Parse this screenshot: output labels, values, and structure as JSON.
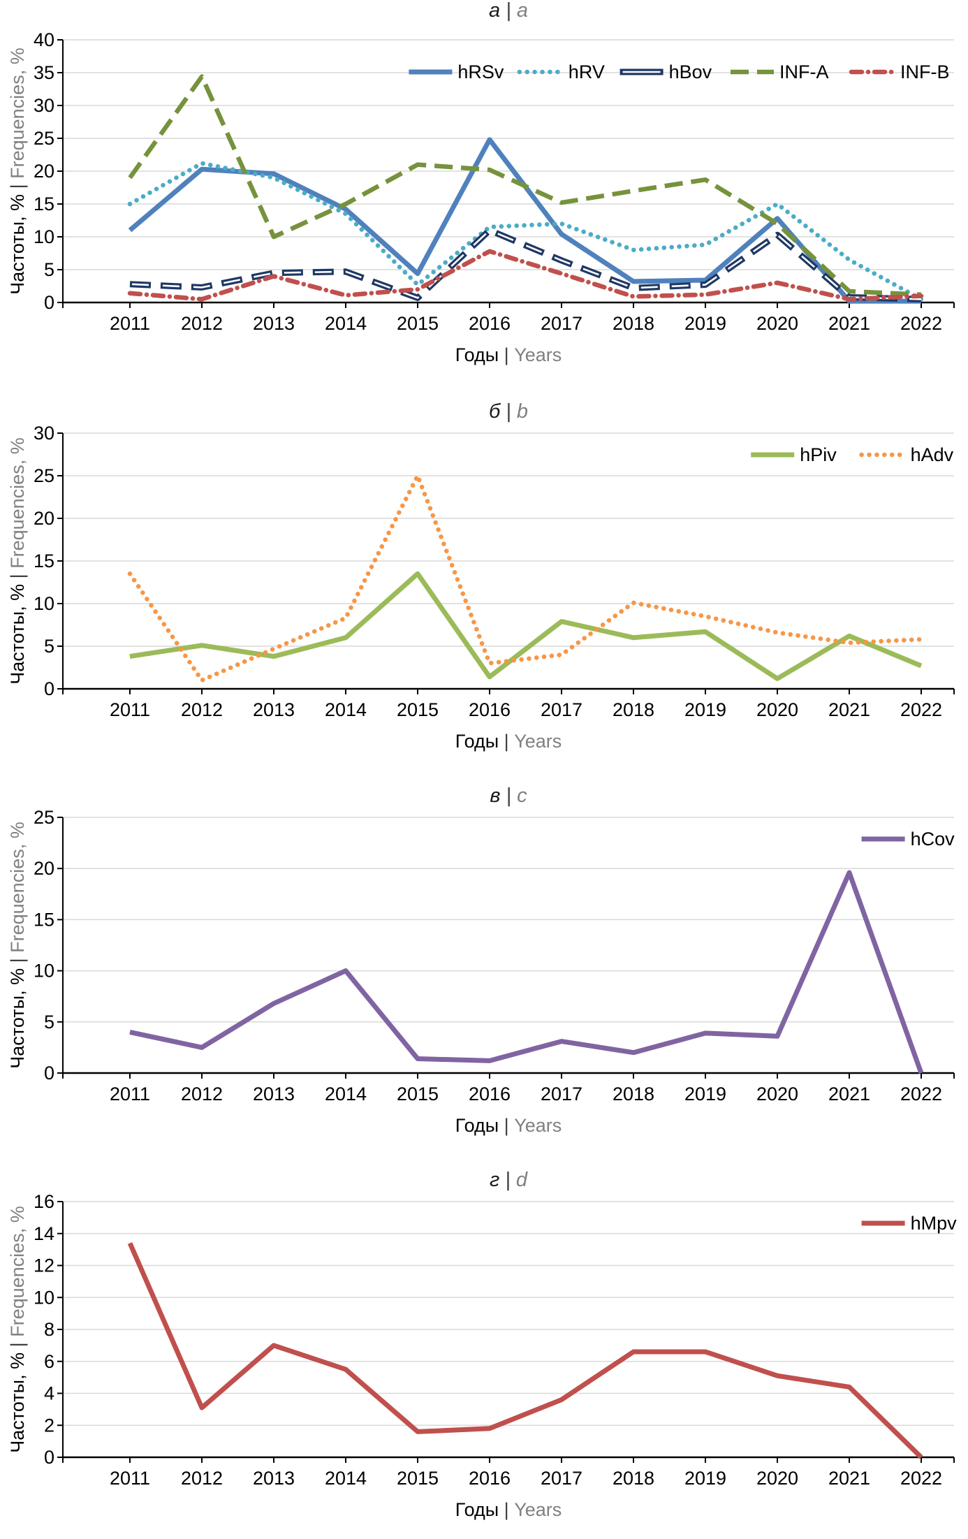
{
  "figure_label": "Frequencies of respiratory viruses by year, four panels",
  "palette": {
    "hRSv": "#4F81BD",
    "hRV": "#4BACC6",
    "hBov": "#1F3864",
    "INF-A": "#76923C",
    "INF-B": "#C0504D",
    "hPiv": "#9BBB59",
    "hAdv": "#F79646",
    "hCov": "#8064A2",
    "hMpv": "#C0504D",
    "grid": "#D9D9D9",
    "axis": "#000000",
    "secondary_text": "#808080"
  },
  "chart_data": [
    {
      "type": "line",
      "panel": "a",
      "title": "а | a",
      "title_ru": "а",
      "title_sep": " | ",
      "title_en": "a",
      "xlabel": "Годы | Years",
      "xlabel_ru": "Годы",
      "xlabel_en": "Years",
      "ylabel": "Частоты, % | Frequencies, %",
      "ylabel_ru": "Частоты, %",
      "ylabel_en": "Frequencies, %",
      "ylim": [
        0,
        40
      ],
      "ystep": 5,
      "yticks": [
        0,
        5,
        10,
        15,
        20,
        25,
        30,
        35,
        40
      ],
      "grid": true,
      "legend_position": "top-right-inside",
      "x": [
        "2011",
        "2012",
        "2013",
        "2014",
        "2015",
        "2016",
        "2017",
        "2018",
        "2019",
        "2020",
        "2021",
        "2022"
      ],
      "series": [
        {
          "name": "hRSv",
          "style": "solid",
          "color": "#4F81BD",
          "values": [
            11.0,
            20.3,
            19.6,
            14.2,
            4.4,
            24.8,
            10.4,
            3.2,
            3.4,
            12.8,
            0.2,
            0.2
          ]
        },
        {
          "name": "hRV",
          "style": "dotted",
          "color": "#4BACC6",
          "values": [
            15.0,
            21.2,
            19.0,
            13.5,
            2.7,
            11.5,
            12.0,
            8.0,
            8.8,
            15.0,
            6.5,
            0.5
          ]
        },
        {
          "name": "hBov",
          "style": "outlined-dash",
          "color": "#1F3864",
          "values": [
            2.8,
            2.3,
            4.5,
            4.7,
            0.7,
            11.0,
            6.4,
            2.2,
            2.7,
            10.3,
            0.8,
            0.5
          ]
        },
        {
          "name": "INF-A",
          "style": "dashed",
          "color": "#76923C",
          "values": [
            19.0,
            34.4,
            10.0,
            15.0,
            21.0,
            20.2,
            15.2,
            17.0,
            18.7,
            12.0,
            1.7,
            1.2
          ]
        },
        {
          "name": "INF-B",
          "style": "dashdot",
          "color": "#C0504D",
          "values": [
            1.4,
            0.5,
            4.0,
            1.1,
            2.0,
            7.8,
            4.4,
            0.9,
            1.2,
            3.0,
            0.5,
            1.0
          ]
        }
      ]
    },
    {
      "type": "line",
      "panel": "b",
      "title": "б | b",
      "title_ru": "б",
      "title_sep": " | ",
      "title_en": "b",
      "xlabel": "Годы | Years",
      "xlabel_ru": "Годы",
      "xlabel_en": "Years",
      "ylabel": "Частоты, % | Frequencies, %",
      "ylabel_ru": "Частоты, %",
      "ylabel_en": "Frequencies, %",
      "ylim": [
        0,
        30
      ],
      "ystep": 5,
      "yticks": [
        0,
        5,
        10,
        15,
        20,
        25,
        30
      ],
      "grid": true,
      "legend_position": "top-right-inside",
      "x": [
        "2011",
        "2012",
        "2013",
        "2014",
        "2015",
        "2016",
        "2017",
        "2018",
        "2019",
        "2020",
        "2021",
        "2022"
      ],
      "series": [
        {
          "name": "hPiv",
          "style": "solid",
          "color": "#9BBB59",
          "values": [
            3.8,
            5.1,
            3.8,
            6.0,
            13.5,
            1.4,
            7.9,
            6.0,
            6.7,
            1.2,
            6.2,
            2.7
          ]
        },
        {
          "name": "hAdv",
          "style": "dotted",
          "color": "#F79646",
          "values": [
            13.5,
            1.0,
            4.7,
            8.3,
            25.0,
            3.0,
            4.0,
            10.1,
            8.5,
            6.6,
            5.4,
            5.8
          ]
        }
      ]
    },
    {
      "type": "line",
      "panel": "c",
      "title": "в | c",
      "title_ru": "в",
      "title_sep": " | ",
      "title_en": "c",
      "xlabel": "Годы | Years",
      "xlabel_ru": "Годы",
      "xlabel_en": "Years",
      "ylabel": "Частоты, % | Frequencies, %",
      "ylabel_ru": "Частоты, %",
      "ylabel_en": "Frequencies, %",
      "ylim": [
        0,
        25
      ],
      "ystep": 5,
      "yticks": [
        0,
        5,
        10,
        15,
        20,
        25
      ],
      "grid": true,
      "legend_position": "top-right-inside",
      "x": [
        "2011",
        "2012",
        "2013",
        "2014",
        "2015",
        "2016",
        "2017",
        "2018",
        "2019",
        "2020",
        "2021",
        "2022"
      ],
      "series": [
        {
          "name": "hCov",
          "style": "solid",
          "color": "#8064A2",
          "values": [
            4.0,
            2.5,
            6.8,
            10.0,
            1.4,
            1.2,
            3.1,
            2.0,
            3.9,
            3.6,
            19.6,
            0.0
          ]
        }
      ]
    },
    {
      "type": "line",
      "panel": "d",
      "title": "г | d",
      "title_ru": "г",
      "title_sep": " | ",
      "title_en": "d",
      "xlabel": "Годы | Years",
      "xlabel_ru": "Годы",
      "xlabel_en": "Years",
      "ylabel": "Частоты, % | Frequencies, %",
      "ylabel_ru": "Частоты, %",
      "ylabel_en": "Frequencies, %",
      "ylim": [
        0,
        16
      ],
      "ystep": 2,
      "yticks": [
        0,
        2,
        4,
        6,
        8,
        10,
        12,
        14,
        16
      ],
      "grid": true,
      "legend_position": "top-right-inside",
      "x": [
        "2011",
        "2012",
        "2013",
        "2014",
        "2015",
        "2016",
        "2017",
        "2018",
        "2019",
        "2020",
        "2021",
        "2022"
      ],
      "series": [
        {
          "name": "hMpv",
          "style": "solid",
          "color": "#C0504D",
          "values": [
            13.4,
            3.1,
            7.0,
            5.5,
            1.6,
            1.8,
            3.6,
            6.6,
            6.6,
            5.1,
            4.4,
            0.0
          ]
        }
      ]
    }
  ]
}
